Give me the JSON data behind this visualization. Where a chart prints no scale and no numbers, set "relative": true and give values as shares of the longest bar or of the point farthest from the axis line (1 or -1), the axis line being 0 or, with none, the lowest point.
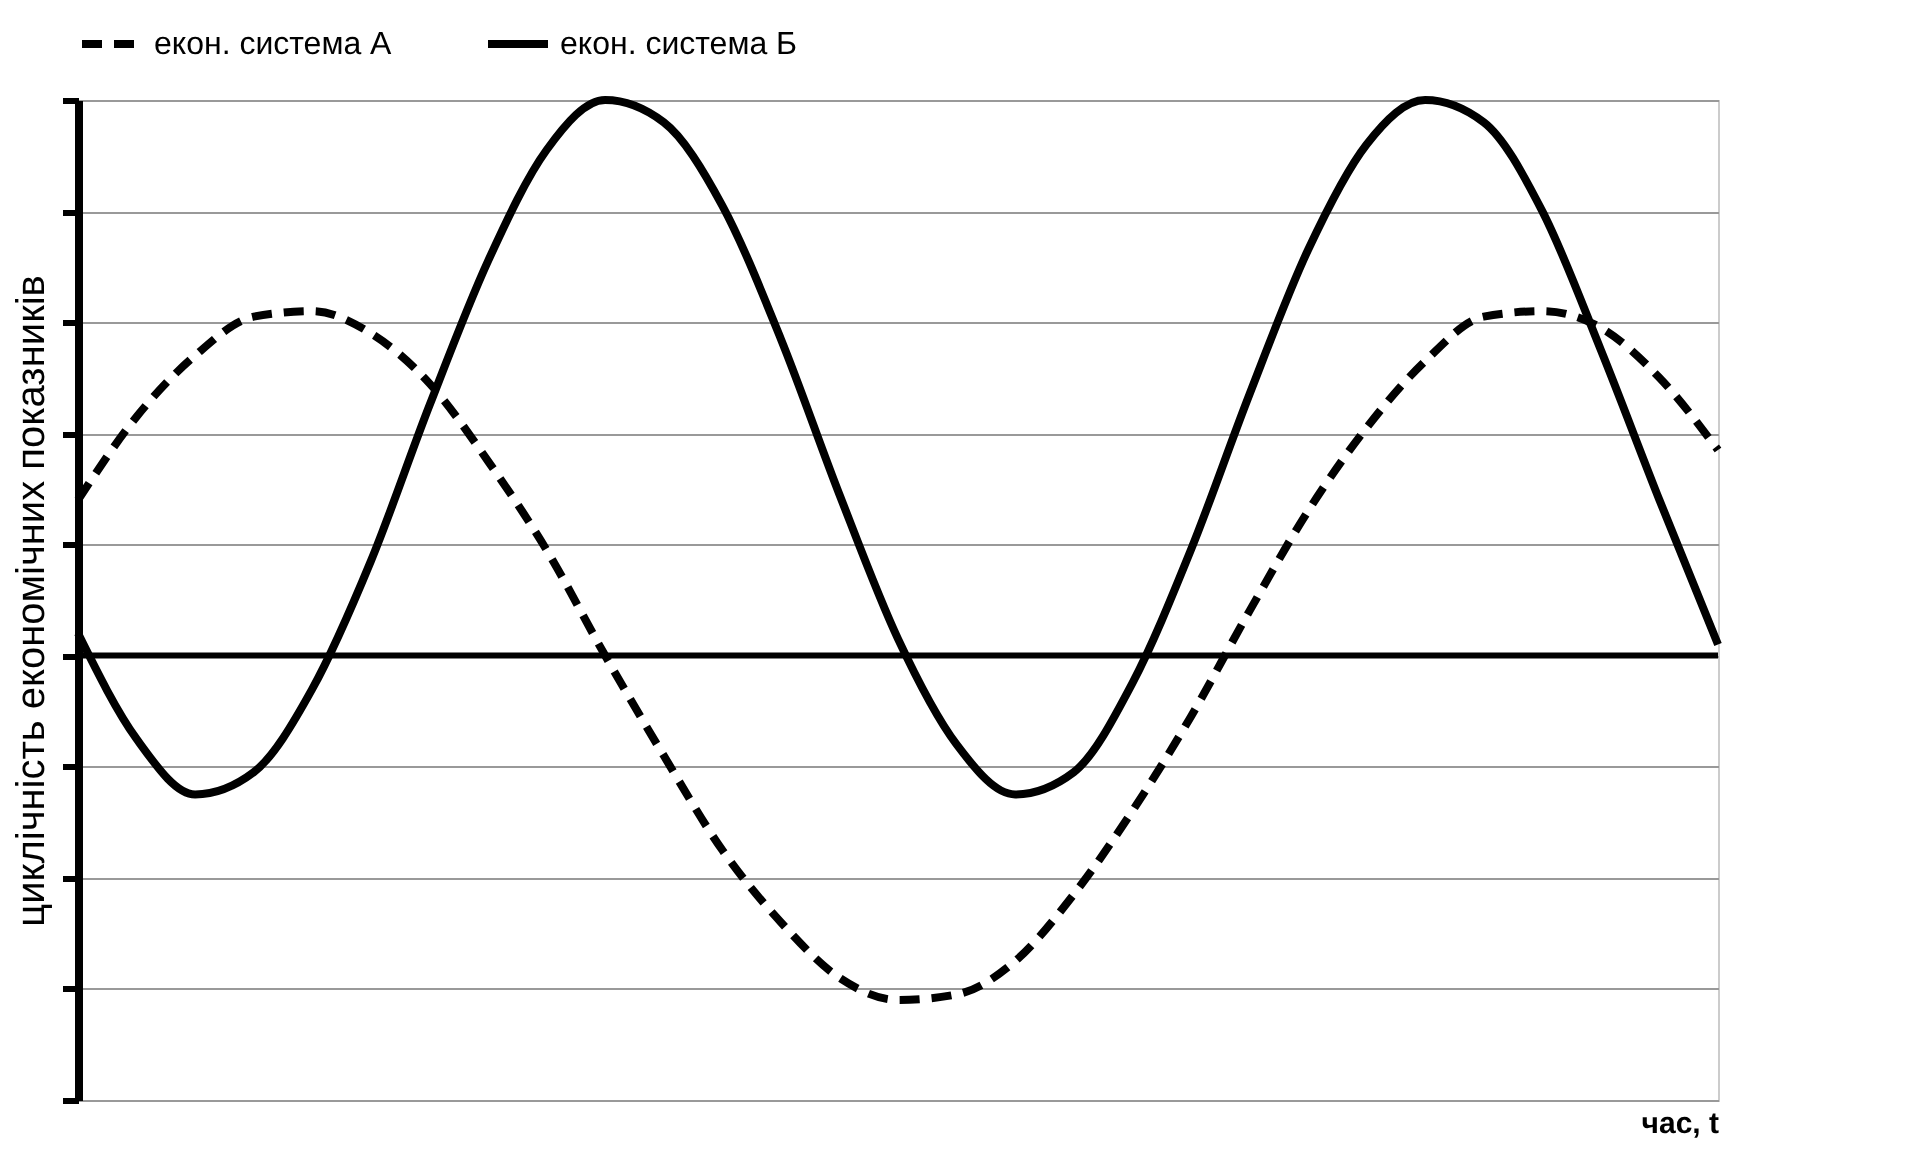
{
  "chart_data": {
    "type": "line",
    "relative": true,
    "xlabel": "час, t",
    "ylabel": "циклічність економічних показників",
    "legend": "top",
    "grid": "y",
    "categories": [
      null,
      null,
      null,
      null,
      null,
      null,
      null,
      null,
      null,
      null,
      null,
      null,
      null,
      null,
      null,
      null,
      null,
      null,
      null,
      null,
      null,
      null,
      null,
      null,
      null,
      null,
      null,
      null,
      null
    ],
    "series": [
      {
        "name": "екон. система А",
        "color": "#000000",
        "line_style": "dashed",
        "values": [
          0.28,
          0.43,
          0.54,
          0.61,
          0.62,
          0.58,
          0.49,
          0.35,
          0.19,
          0.0,
          -0.18,
          -0.35,
          -0.48,
          -0.58,
          -0.62,
          -0.61,
          -0.55,
          -0.43,
          -0.28,
          -0.11,
          0.08,
          0.26,
          0.41,
          0.53,
          0.61,
          0.62,
          0.59,
          0.5,
          0.37
        ]
      },
      {
        "name": "екон. система Б",
        "color": "#000000",
        "line_style": "solid",
        "values": [
          0.04,
          -0.15,
          -0.25,
          -0.21,
          -0.06,
          0.17,
          0.45,
          0.71,
          0.91,
          1.0,
          0.96,
          0.81,
          0.57,
          0.29,
          0.03,
          -0.16,
          -0.25,
          -0.21,
          -0.05,
          0.19,
          0.47,
          0.73,
          0.92,
          1.0,
          0.96,
          0.8,
          0.55,
          0.28,
          0.02
        ]
      }
    ]
  }
}
